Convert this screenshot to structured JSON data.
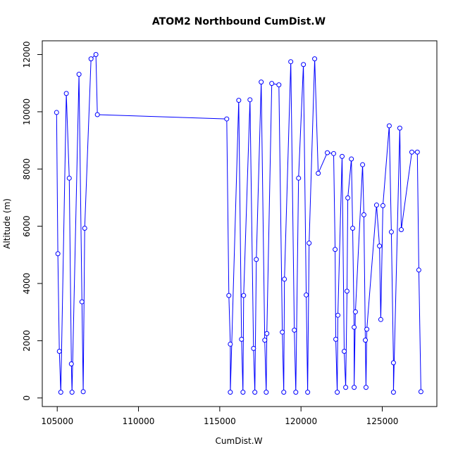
{
  "chart_data": {
    "type": "line",
    "title": "ATOM2 Northbound CumDist.W",
    "x_label": "CumDist.W",
    "y_label": "Altitude (m)",
    "color": "#0000ff",
    "marker": "circle",
    "grid": false,
    "xlim": [
      104080,
      128360
    ],
    "ylim": [
      -300,
      12480
    ],
    "xticks": [
      105000,
      110000,
      115000,
      120000,
      125000
    ],
    "yticks": [
      0,
      2000,
      4000,
      6000,
      8000,
      10000,
      12000
    ],
    "x": [
      104960,
      105040,
      105130,
      105220,
      105560,
      105740,
      105870,
      105910,
      106340,
      106520,
      106600,
      106690,
      107080,
      107380,
      107470,
      115430,
      115560,
      115650,
      115650,
      116170,
      116340,
      116430,
      116470,
      116860,
      117080,
      117160,
      117250,
      117550,
      117770,
      117860,
      117900,
      118200,
      118640,
      118850,
      118940,
      118980,
      119370,
      119590,
      119680,
      119850,
      120150,
      120320,
      120410,
      120500,
      120840,
      121060,
      121620,
      122010,
      122100,
      122140,
      122230,
      122270,
      122530,
      122660,
      122750,
      122830,
      122880,
      123100,
      123180,
      123270,
      123270,
      123350,
      123790,
      123870,
      123960,
      124000,
      124050,
      124650,
      124830,
      124910,
      125040,
      125430,
      125560,
      125690,
      125690,
      126080,
      126170,
      126820,
      127160,
      127250,
      127380
    ],
    "values": [
      9975,
      5040,
      1630,
      200,
      10640,
      7680,
      1190,
      200,
      11310,
      3360,
      220,
      5930,
      11850,
      12000,
      9900,
      9750,
      3580,
      1880,
      200,
      10400,
      2050,
      200,
      3580,
      10420,
      1730,
      200,
      4840,
      11040,
      2020,
      200,
      2250,
      10990,
      10940,
      2300,
      200,
      4150,
      11750,
      2370,
      200,
      7680,
      11650,
      3600,
      200,
      5410,
      11850,
      7850,
      8570,
      8540,
      5190,
      2050,
      200,
      2890,
      8440,
      1630,
      370,
      3730,
      6990,
      8350,
      5930,
      2470,
      370,
      3010,
      8150,
      6400,
      2020,
      370,
      2400,
      6740,
      5310,
      2740,
      6720,
      9510,
      5800,
      1230,
      200,
      9430,
      5880,
      8590,
      8590,
      4470,
      220
    ]
  }
}
